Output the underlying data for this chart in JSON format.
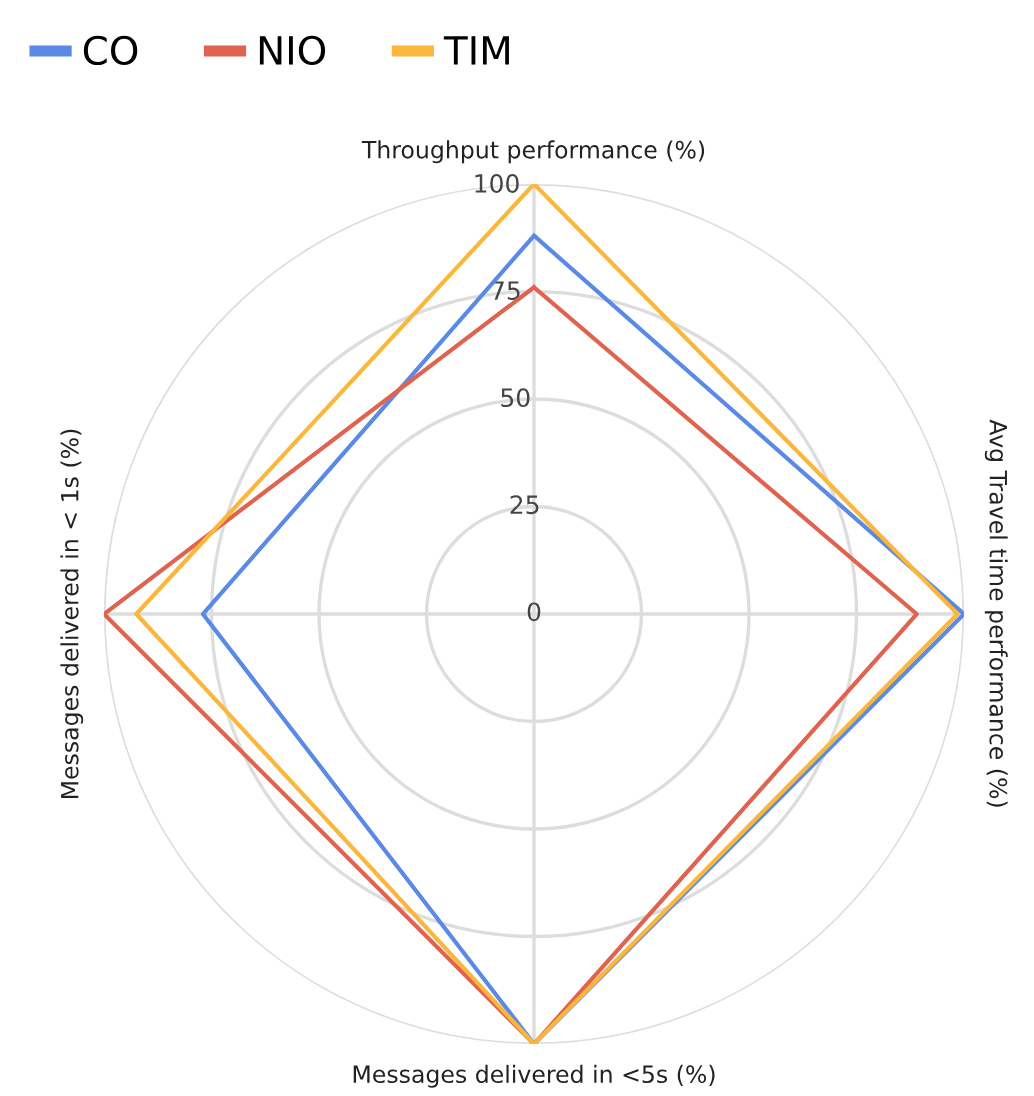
{
  "chart_data": {
    "type": "radar",
    "categories": [
      "Throughput performance (%)",
      "Avg Travel time performance (%)",
      "Messages delivered in <5s (%)",
      "Messages delivered in < 1s (%)"
    ],
    "series": [
      {
        "name": "CO",
        "color": "#5b8ae6",
        "values": [
          88,
          100,
          100,
          77
        ]
      },
      {
        "name": "NIO",
        "color": "#e0634f",
        "values": [
          76,
          89,
          100,
          100
        ]
      },
      {
        "name": "TIM",
        "color": "#fbb73c",
        "values": [
          100,
          98.5,
          100,
          92.5
        ]
      }
    ],
    "ylim": [
      0,
      100
    ],
    "yticks": [
      0,
      25,
      50,
      75,
      100
    ],
    "grid": true,
    "legend": "top left",
    "marker": "none",
    "line_style": "solid"
  }
}
